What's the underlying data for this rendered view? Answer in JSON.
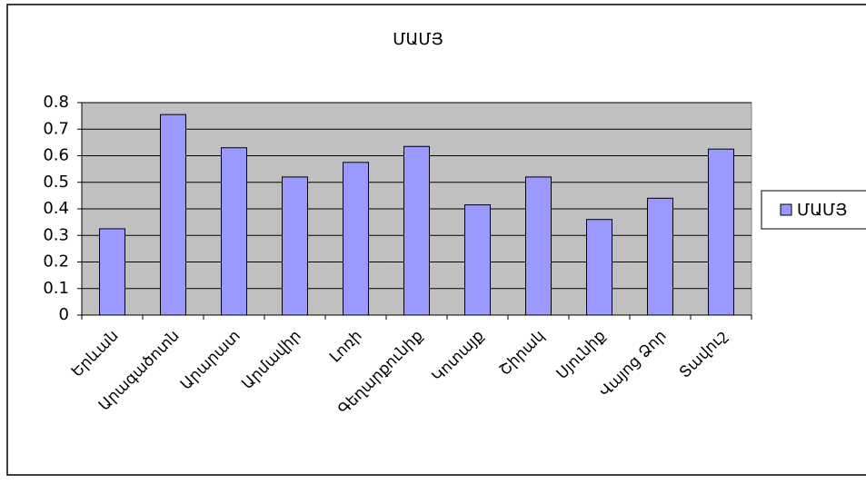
{
  "chart_data": {
    "type": "bar",
    "title": "ՄԱՄՅ",
    "categories": [
      "Երևան",
      "Արագածոտն",
      "Արարատ",
      "Արմավիր",
      "Լոռի",
      "Գեղարքունիք",
      "Կոտայք",
      "Շիրակ",
      "Սյունիք",
      "Վայոց Ձոր",
      "Տավուշ"
    ],
    "series": [
      {
        "name": "ՄԱՄՅ",
        "color": "#9999ff",
        "values": [
          0.325,
          0.755,
          0.63,
          0.52,
          0.575,
          0.635,
          0.415,
          0.52,
          0.36,
          0.44,
          0.625
        ]
      }
    ],
    "ylim": [
      0,
      0.8
    ],
    "yticks": [
      0,
      0.1,
      0.2,
      0.3,
      0.4,
      0.5,
      0.6,
      0.7,
      0.8
    ],
    "grid": true,
    "legend": "right"
  }
}
